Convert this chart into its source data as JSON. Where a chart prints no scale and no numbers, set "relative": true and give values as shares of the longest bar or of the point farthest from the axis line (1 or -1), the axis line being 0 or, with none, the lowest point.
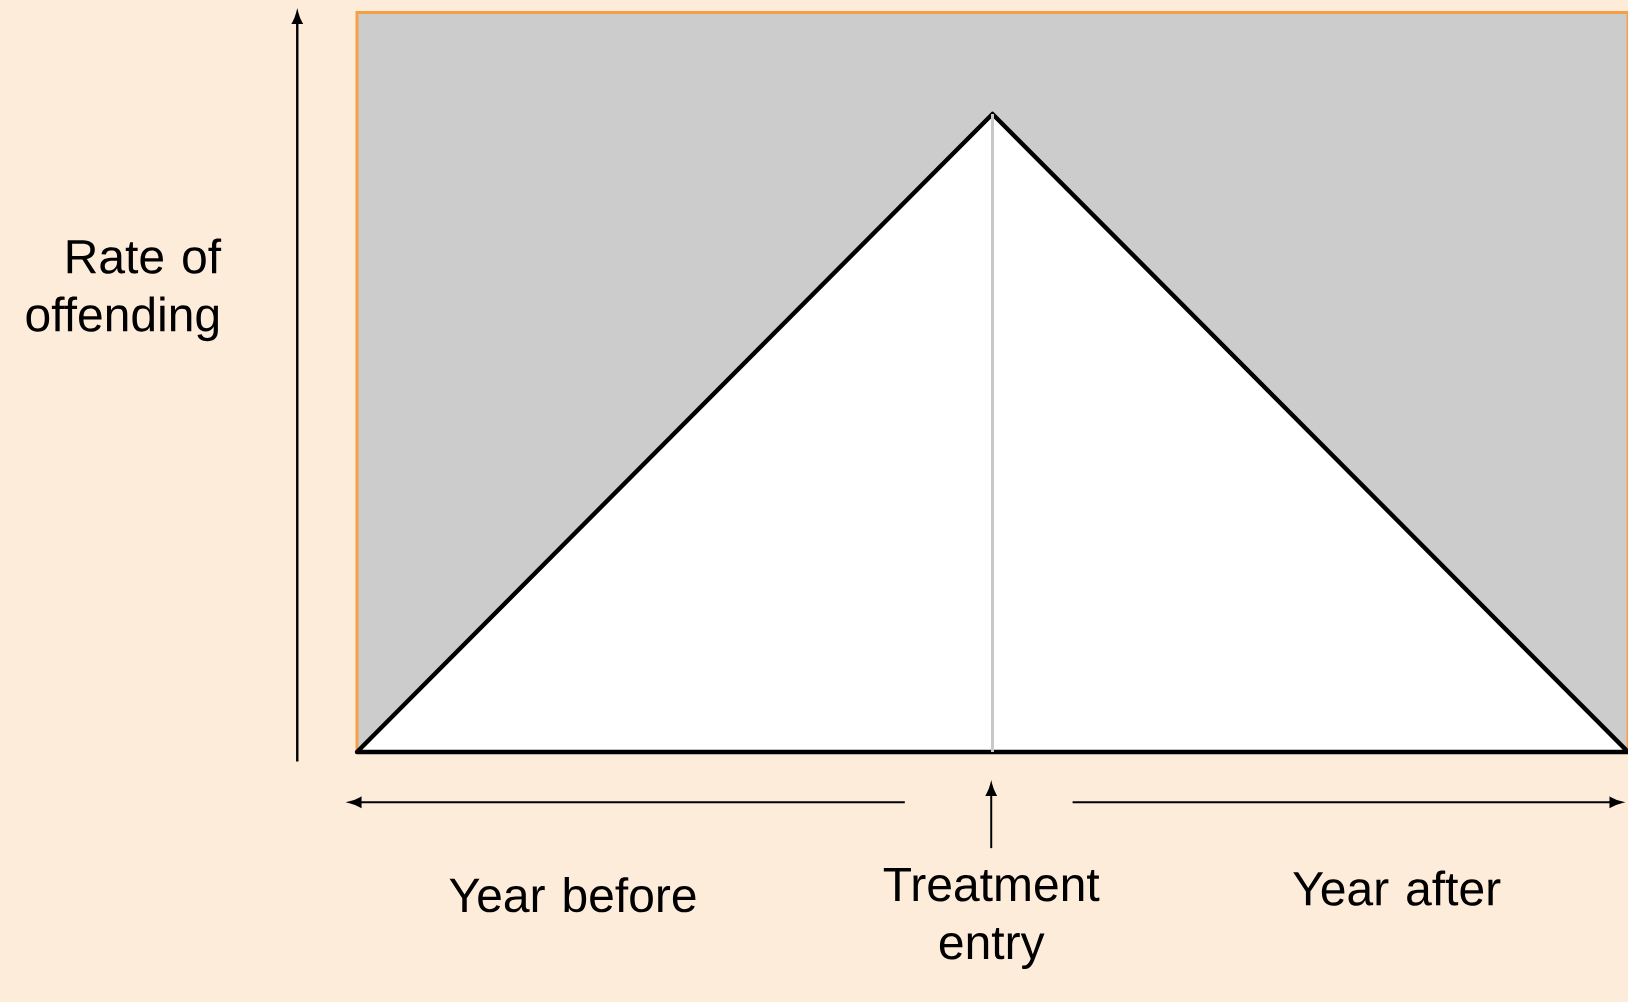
{
  "chart_data": {
    "type": "area",
    "relative": true,
    "ylabel": "Rate of offending",
    "categories": [
      null,
      null,
      null
    ],
    "values": [
      0,
      1,
      0
    ],
    "color": "#ffffff",
    "annotations": [
      "Year before",
      "Treatment entry",
      "Year after"
    ]
  }
}
